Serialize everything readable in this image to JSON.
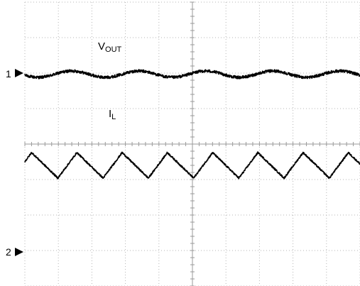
{
  "chart_data": {
    "type": "line",
    "title": "",
    "xlabel": "",
    "ylabel": "",
    "grid": true,
    "grid_divisions": {
      "x": 10,
      "y": 8
    },
    "xlim": [
      0,
      10
    ],
    "ylim": [
      0,
      8
    ],
    "channel_markers": [
      {
        "label": "1",
        "level": 6.05
      },
      {
        "label": "2",
        "level": 0.95
      }
    ],
    "series": [
      {
        "name": "VOUT",
        "label_main": "V",
        "label_sub": "OUT",
        "color": "#000000",
        "waveform": "ripple",
        "periods": 5,
        "phase": 0.55,
        "offset": 5.97,
        "amplitude": 0.09,
        "noise": 0.04
      },
      {
        "name": "IL",
        "label_main": "I",
        "label_sub": "L",
        "color": "#000000",
        "waveform": "triangle",
        "period": 1.35,
        "phase": 0.27,
        "max": 3.76,
        "min": 3.04,
        "rise_fraction": 0.42,
        "noise": 0.025
      }
    ]
  }
}
